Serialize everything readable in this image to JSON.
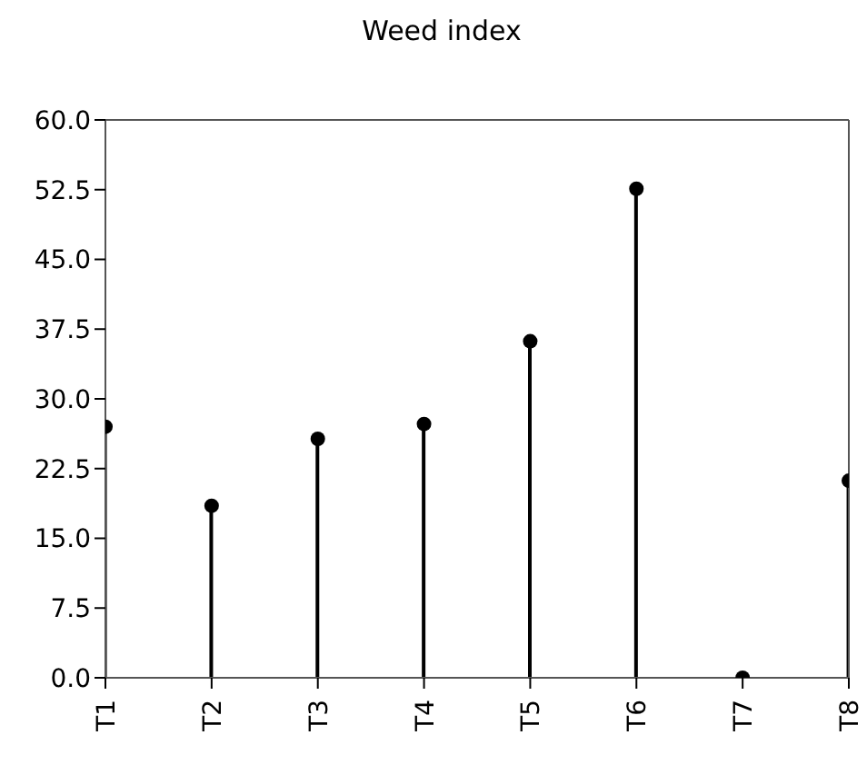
{
  "chart_data": {
    "type": "lollipop",
    "title": "Weed index",
    "categories": [
      "T1",
      "T2",
      "T3",
      "T4",
      "T5",
      "T6",
      "T7",
      "T8"
    ],
    "values": [
      27.0,
      18.5,
      25.7,
      27.3,
      36.2,
      52.6,
      0.0,
      21.2
    ],
    "color": "#000000",
    "marker": "circle",
    "ylim": [
      0,
      60
    ],
    "yticks": [
      {
        "value": 0,
        "label": "0.0"
      },
      {
        "value": 7.5,
        "label": "7.5"
      },
      {
        "value": 15,
        "label": "15.0"
      },
      {
        "value": 22.5,
        "label": "22.5"
      },
      {
        "value": 30,
        "label": "30.0"
      },
      {
        "value": 37.5,
        "label": "37.5"
      },
      {
        "value": 45,
        "label": "45.0"
      },
      {
        "value": 52.5,
        "label": "52.5"
      },
      {
        "value": 60,
        "label": "60.0"
      }
    ],
    "grid": false
  }
}
